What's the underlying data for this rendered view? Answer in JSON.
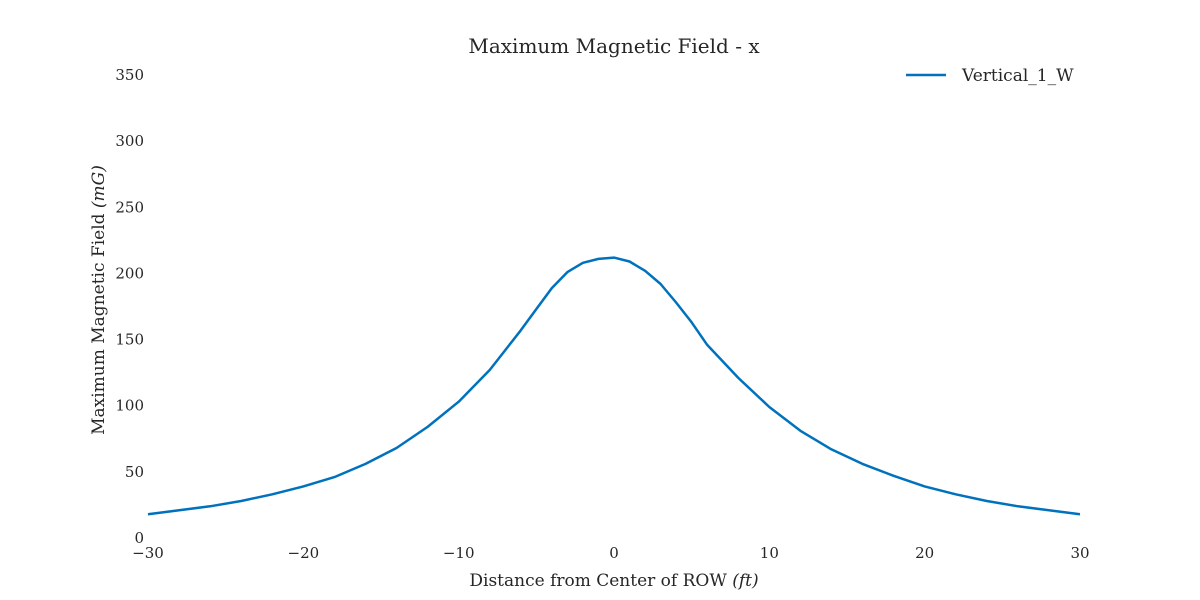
{
  "chart_data": {
    "type": "line",
    "title": "Maximum Magnetic Field - x",
    "xlabel_text": "Distance from Center of ROW ",
    "xlabel_unit": "(ft)",
    "ylabel_text": "Maximum Magnetic Field ",
    "ylabel_unit": "(mG)",
    "xlim": [
      -30,
      30
    ],
    "ylim": [
      0,
      350
    ],
    "x_ticks": [
      -30,
      -20,
      -10,
      0,
      10,
      20,
      30
    ],
    "x_tick_labels": [
      "−30",
      "−20",
      "−10",
      "0",
      "10",
      "20",
      "30"
    ],
    "y_ticks": [
      0,
      50,
      100,
      150,
      200,
      250,
      300,
      350
    ],
    "y_tick_labels": [
      "0",
      "50",
      "100",
      "150",
      "200",
      "250",
      "300",
      "350"
    ],
    "grid": false,
    "legend_position": "top-right",
    "series": [
      {
        "name": "Vertical_1_W",
        "color": "#0072bd",
        "x": [
          -30,
          -28,
          -26,
          -24,
          -22,
          -20,
          -18,
          -16,
          -14,
          -12,
          -10,
          -8,
          -6,
          -5,
          -4,
          -3,
          -2,
          -1,
          0,
          1,
          2,
          3,
          4,
          5,
          6,
          8,
          10,
          12,
          14,
          16,
          18,
          20,
          22,
          24,
          26,
          28,
          30
        ],
        "y": [
          18,
          21,
          24,
          28,
          33,
          39,
          46,
          56,
          68,
          84,
          103,
          127,
          157,
          173,
          189,
          201,
          208,
          211,
          212,
          209,
          202,
          192,
          178,
          163,
          146,
          121,
          99,
          81,
          67,
          56,
          47,
          39,
          33,
          28,
          24,
          21,
          18
        ]
      }
    ]
  }
}
